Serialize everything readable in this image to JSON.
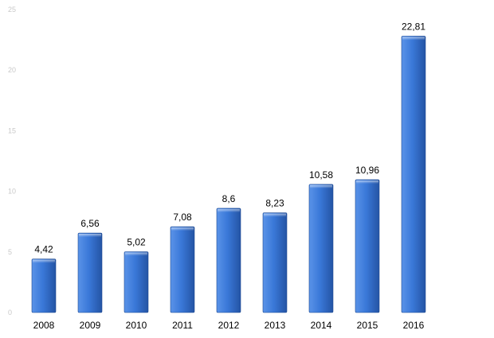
{
  "chart_data": {
    "type": "bar",
    "title": "",
    "xlabel": "",
    "ylabel": "",
    "categories": [
      "2008",
      "2009",
      "2010",
      "2011",
      "2012",
      "2013",
      "2014",
      "2015",
      "2016"
    ],
    "values": [
      4.42,
      6.56,
      5.02,
      7.08,
      8.6,
      8.23,
      10.58,
      10.96,
      22.81
    ],
    "value_labels": [
      "4,42",
      "6,56",
      "5,02",
      "7,08",
      "8,6",
      "8,23",
      "10,58",
      "10,96",
      "22,81"
    ],
    "ylim": [
      0,
      25
    ],
    "yticks": [
      0,
      5,
      10,
      15,
      20,
      25
    ],
    "ytick_labels": [
      "0",
      "5",
      "10",
      "15",
      "20",
      "25"
    ],
    "grid": false,
    "legend": "none",
    "colors": {
      "bar_light": "#5a93e8",
      "bar_mid": "#3a78d8",
      "bar_dark": "#2454a4",
      "tick_text": "#c9c9c9",
      "label_text": "#000000"
    }
  }
}
